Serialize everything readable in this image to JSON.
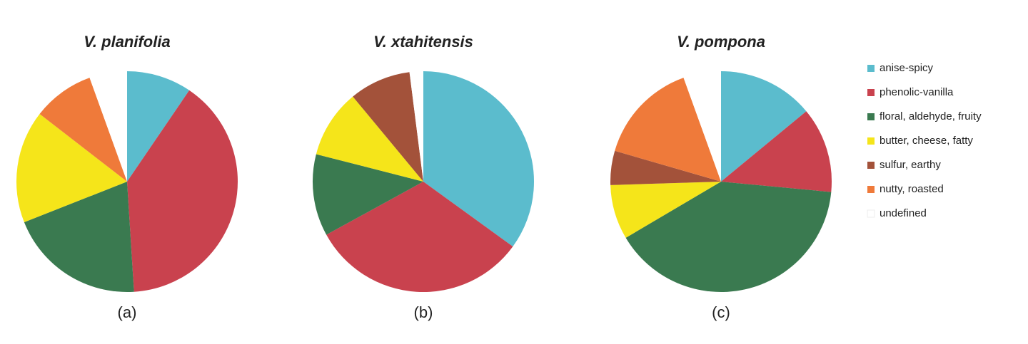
{
  "chart_data": [
    {
      "type": "pie",
      "title": "V. planifolia",
      "caption": "(a)",
      "categories": [
        "anise-spicy",
        "phenolic-vanilla",
        "floral, aldehyde, fruity",
        "butter, cheese, fatty",
        "sulfur, earthy",
        "nutty, roasted",
        "undefined"
      ],
      "values": [
        9.5,
        39.5,
        20,
        16.5,
        0,
        9,
        5.5
      ],
      "colors": [
        "#5bbccd",
        "#c9424e",
        "#3a7a50",
        "#f5e51a",
        "#a3523a",
        "#ef7a3a",
        "#ffffff"
      ]
    },
    {
      "type": "pie",
      "title": "V. xtahitensis",
      "caption": "(b)",
      "categories": [
        "anise-spicy",
        "phenolic-vanilla",
        "floral, aldehyde, fruity",
        "butter, cheese, fatty",
        "sulfur, earthy",
        "nutty, roasted",
        "undefined"
      ],
      "values": [
        35,
        32,
        12,
        10,
        9,
        0,
        2
      ],
      "colors": [
        "#5bbccd",
        "#c9424e",
        "#3a7a50",
        "#f5e51a",
        "#a3523a",
        "#ef7a3a",
        "#ffffff"
      ]
    },
    {
      "type": "pie",
      "title": "V. pompona",
      "caption": "(c)",
      "categories": [
        "anise-spicy",
        "phenolic-vanilla",
        "floral, aldehyde, fruity",
        "butter, cheese, fatty",
        "sulfur, earthy",
        "nutty, roasted",
        "undefined"
      ],
      "values": [
        14,
        12.5,
        40,
        8,
        5,
        15,
        5.5
      ],
      "colors": [
        "#5bbccd",
        "#c9424e",
        "#3a7a50",
        "#f5e51a",
        "#a3523a",
        "#ef7a3a",
        "#ffffff"
      ]
    }
  ]
}
